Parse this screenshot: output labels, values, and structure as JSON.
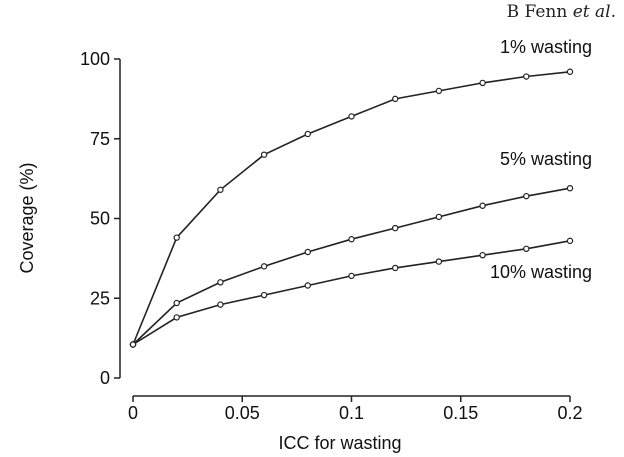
{
  "header": {
    "authors": "B Fenn",
    "et_al": "et al."
  },
  "chart_data": {
    "type": "line",
    "title": "",
    "xlabel": "ICC  for wasting",
    "ylabel": "Coverage (%)",
    "xlim": [
      0,
      0.2
    ],
    "ylim": [
      0,
      100
    ],
    "x_ticks": [
      0,
      0.05,
      0.1,
      0.15,
      0.2
    ],
    "x_tick_labels": [
      "0",
      "0.05",
      "0.1",
      "0.15",
      "0.2"
    ],
    "y_ticks": [
      0,
      25,
      50,
      75,
      100
    ],
    "y_tick_labels": [
      "0",
      "25",
      "50",
      "75",
      "100"
    ],
    "grid": false,
    "legend": "inline labels at right",
    "x": [
      0,
      0.02,
      0.04,
      0.06,
      0.08,
      0.1,
      0.12,
      0.14,
      0.16,
      0.18,
      0.2
    ],
    "series": [
      {
        "name": "1% wasting",
        "values": [
          10.5,
          44,
          59,
          70,
          76.5,
          82,
          87.5,
          90,
          92.5,
          94.5,
          96
        ]
      },
      {
        "name": "5% wasting",
        "values": [
          10.5,
          23.5,
          30,
          35,
          39.5,
          43.5,
          47,
          50.5,
          54,
          57,
          59.5
        ]
      },
      {
        "name": "10% wasting",
        "values": [
          10.5,
          19,
          23,
          26,
          29,
          32,
          34.5,
          36.5,
          38.5,
          40.5,
          43
        ]
      }
    ],
    "colors": {
      "line": "#222222",
      "marker_fill": "#ffffff"
    }
  }
}
